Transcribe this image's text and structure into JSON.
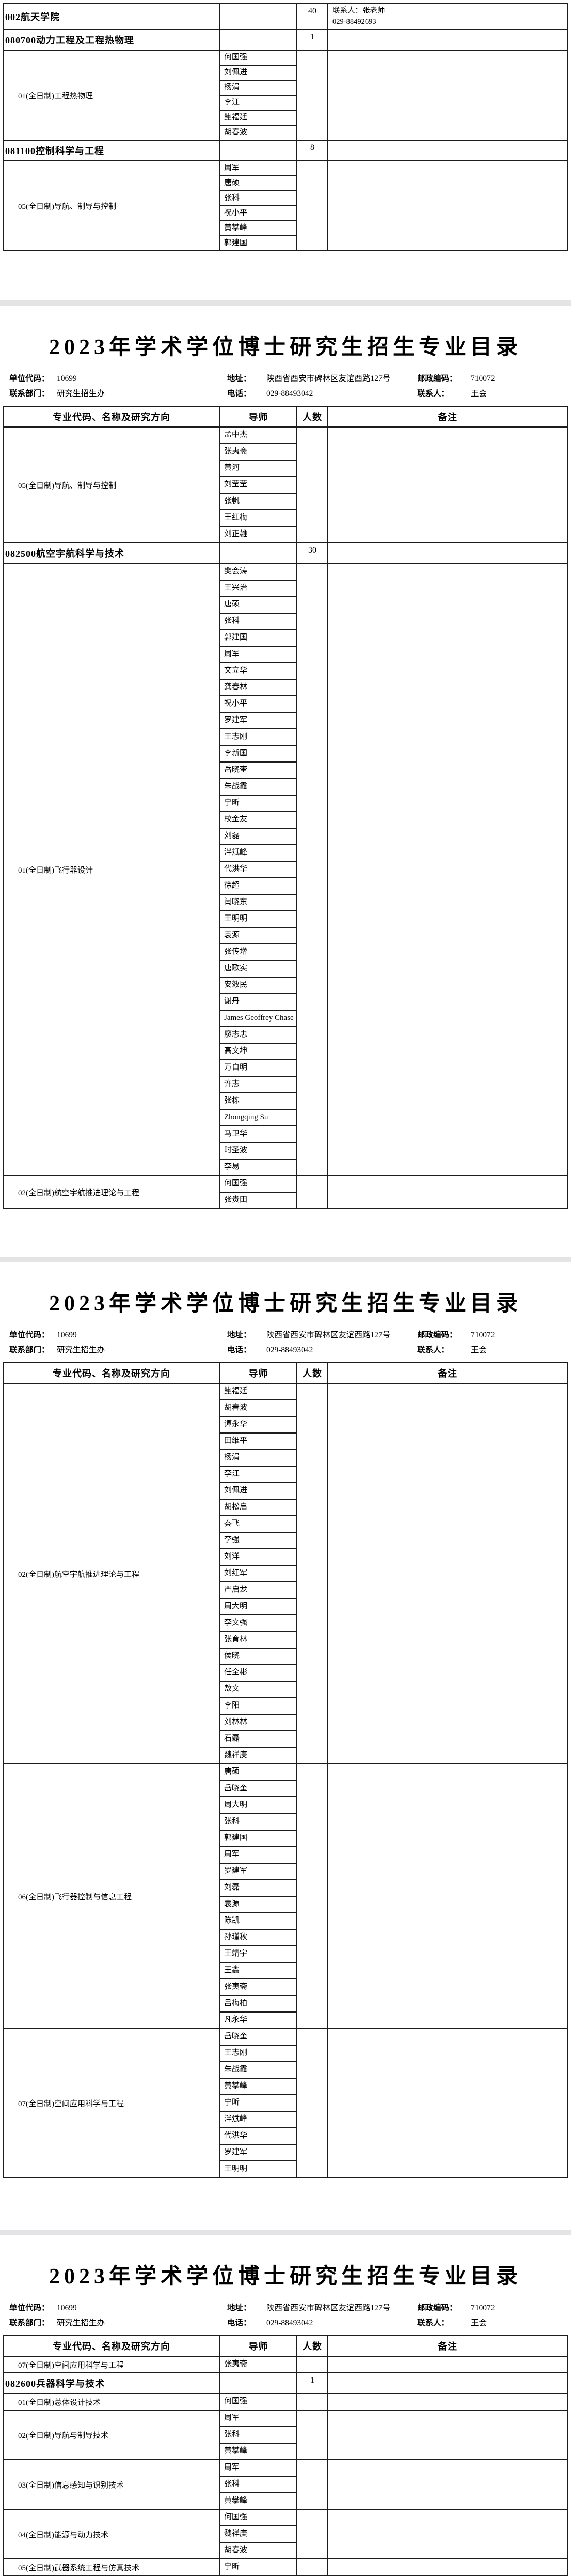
{
  "page_title": "2023年学术学位博士研究生招生专业目录",
  "info": {
    "unit_code_label": "单位代码：",
    "unit_code": "10699",
    "address_label": "地址：",
    "address": "陕西省西安市碑林区友谊西路127号",
    "postal_label": "邮政编码：",
    "postal": "710072",
    "dept_label": "联系部门：",
    "dept": "研究生招生办",
    "phone_label": "电话：",
    "phone": "029-88493042",
    "contact_label": "联系人：",
    "contact": "王会"
  },
  "table_columns": [
    "专业代码、名称及研究方向",
    "导师",
    "人数",
    "备注"
  ],
  "tables": [
    {
      "id": "continuation",
      "show_header": false,
      "rows": [
        {
          "type": "major",
          "name": "002航天学院",
          "count": "40",
          "remark": [
            "联系人：张老师",
            "029-88492693"
          ]
        },
        {
          "type": "major",
          "name": "080700动力工程及工程热物理",
          "count": "1"
        },
        {
          "type": "direction",
          "name": "01(全日制)工程热物理",
          "advisors": [
            "何国强",
            "刘佩进",
            "杨涓",
            "李江",
            "鲍福廷",
            "胡春波"
          ]
        },
        {
          "type": "major",
          "name": "081100控制科学与工程",
          "count": "8"
        },
        {
          "type": "direction",
          "name": "05(全日制)导航、制导与控制",
          "advisors": [
            "周军",
            "唐硕",
            "张科",
            "祝小平",
            "黄攀峰",
            "郭建国"
          ]
        }
      ]
    },
    {
      "id": "page1",
      "show_header": true,
      "rows": [
        {
          "type": "direction",
          "name": "05(全日制)导航、制导与控制",
          "advisors": [
            "孟中杰",
            "张夷斋",
            "黄河",
            "刘莹莹",
            "张帆",
            "王红梅",
            "刘正雄"
          ]
        },
        {
          "type": "major",
          "name": "082500航空宇航科学与技术",
          "count": "30"
        },
        {
          "type": "direction",
          "name": "01(全日制)飞行器设计",
          "advisors": [
            "樊会涛",
            "王兴治",
            "唐硕",
            "张科",
            "郭建国",
            "周军",
            "文立华",
            "龚春林",
            "祝小平",
            "罗建军",
            "王志刚",
            "李新国",
            "岳晓奎",
            "朱战霞",
            "宁昕",
            "校金友",
            "刘磊",
            "泮斌峰",
            "代洪华",
            "徐超",
            "闫晓东",
            "王明明",
            "袁源",
            "张传增",
            "唐歌实",
            "安效民",
            "谢丹",
            "James Geoffrey Chase",
            "廖志忠",
            "高文坤",
            "万自明",
            "许志",
            "张栋",
            "Zhongqing Su",
            "马卫华",
            "时圣波",
            "李易"
          ]
        },
        {
          "type": "direction",
          "name": "02(全日制)航空宇航推进理论与工程",
          "advisors": [
            "何国强",
            "张贵田"
          ]
        }
      ]
    },
    {
      "id": "page2",
      "show_header": true,
      "rows": [
        {
          "type": "direction",
          "name": "02(全日制)航空宇航推进理论与工程",
          "advisors": [
            "鲍福廷",
            "胡春波",
            "谭永华",
            "田维平",
            "杨涓",
            "李江",
            "刘佩进",
            "胡松启",
            "秦飞",
            "李强",
            "刘洋",
            "刘红军",
            "严启龙",
            "周大明",
            "李文强",
            "张育林",
            "侯晓",
            "任全彬",
            "敖文",
            "李阳",
            "刘林林",
            "石磊",
            "魏祥庚"
          ]
        },
        {
          "type": "direction",
          "name": "06(全日制)飞行器控制与信息工程",
          "advisors": [
            "唐硕",
            "岳晓奎",
            "周大明",
            "张科",
            "郭建国",
            "周军",
            "罗建军",
            "刘磊",
            "袁源",
            "陈凯",
            "孙瑾秋",
            "王靖宇",
            "王鑫",
            "张夷斋",
            "吕梅柏",
            "凡永华"
          ]
        },
        {
          "type": "direction",
          "name": "07(全日制)空间应用科学与工程",
          "advisors": [
            "岳晓奎",
            "王志刚",
            "朱战霞",
            "黄攀峰",
            "宁昕",
            "泮斌峰",
            "代洪华",
            "罗建军",
            "王明明"
          ]
        }
      ]
    },
    {
      "id": "page3",
      "show_header": true,
      "rows": [
        {
          "type": "direction",
          "name": "07(全日制)空间应用科学与工程",
          "advisors": [
            "张夷斋"
          ]
        },
        {
          "type": "major",
          "name": "082600兵器科学与技术",
          "count": "1"
        },
        {
          "type": "direction",
          "name": "01(全日制)总体设计技术",
          "advisors": [
            "何国强"
          ]
        },
        {
          "type": "direction",
          "name": "02(全日制)导航与制导技术",
          "advisors": [
            "周军",
            "张科",
            "黄攀峰"
          ]
        },
        {
          "type": "direction",
          "name": "03(全日制)信息感知与识别技术",
          "advisors": [
            "周军",
            "张科",
            "黄攀峰"
          ]
        },
        {
          "type": "direction",
          "name": "04(全日制)能源与动力技术",
          "advisors": [
            "何国强",
            "魏祥庚",
            "胡春波"
          ]
        },
        {
          "type": "direction",
          "name": "05(全日制)武器系统工程与仿真技术",
          "advisors": [
            "宁昕"
          ]
        }
      ]
    }
  ]
}
